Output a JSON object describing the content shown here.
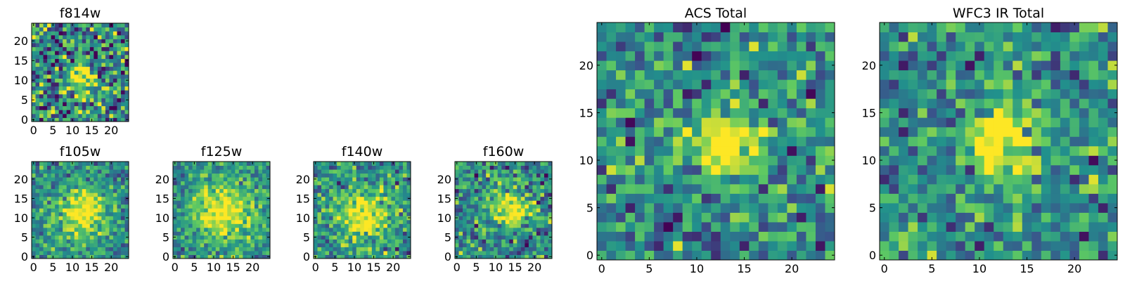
{
  "panels": [
    {
      "id": "f814w",
      "title": "f814w",
      "xticks": [
        0,
        5,
        10,
        15,
        20
      ],
      "yticks": [
        0,
        5,
        10,
        15,
        20
      ],
      "peak": [
        12.5,
        11.0
      ],
      "spread": 2.6,
      "noise": 0.55
    },
    {
      "id": "f105w",
      "title": "f105w",
      "xticks": [
        0,
        5,
        10,
        15,
        20
      ],
      "yticks": [
        0,
        5,
        10,
        15,
        20
      ],
      "peak": [
        12.5,
        11.0
      ],
      "spread": 4.5,
      "noise": 0.3
    },
    {
      "id": "f125w",
      "title": "f125w",
      "xticks": [
        0,
        5,
        10,
        15,
        20
      ],
      "yticks": [
        0,
        5,
        10,
        15,
        20
      ],
      "peak": [
        12.5,
        11.5
      ],
      "spread": 5.5,
      "noise": 0.3
    },
    {
      "id": "f140w",
      "title": "f140w",
      "xticks": [
        0,
        5,
        10,
        15,
        20
      ],
      "yticks": [
        0,
        5,
        10,
        15,
        20
      ],
      "peak": [
        13.0,
        11.0
      ],
      "spread": 4.8,
      "noise": 0.35
    },
    {
      "id": "f160w",
      "title": "f160w",
      "xticks": [
        0,
        5,
        10,
        15,
        20
      ],
      "yticks": [
        0,
        5,
        10,
        15,
        20
      ],
      "peak": [
        13.5,
        12.0
      ],
      "spread": 3.6,
      "noise": 0.4
    },
    {
      "id": "acs-total",
      "title": "ACS Total",
      "xticks": [
        0,
        5,
        10,
        15,
        20
      ],
      "yticks": [
        0,
        5,
        10,
        15,
        20
      ],
      "peak": [
        12.5,
        11.5
      ],
      "spread": 2.8,
      "noise": 0.4
    },
    {
      "id": "wfc3-ir-total",
      "title": "WFC3 IR Total",
      "xticks": [
        0,
        5,
        10,
        15,
        20
      ],
      "yticks": [
        0,
        5,
        10,
        15,
        20
      ],
      "peak": [
        12.5,
        12.0
      ],
      "spread": 3.0,
      "noise": 0.38
    }
  ],
  "grid_size": 25,
  "colormap": [
    "#440154",
    "#3b528b",
    "#21918c",
    "#5ec962",
    "#fde725"
  ]
}
